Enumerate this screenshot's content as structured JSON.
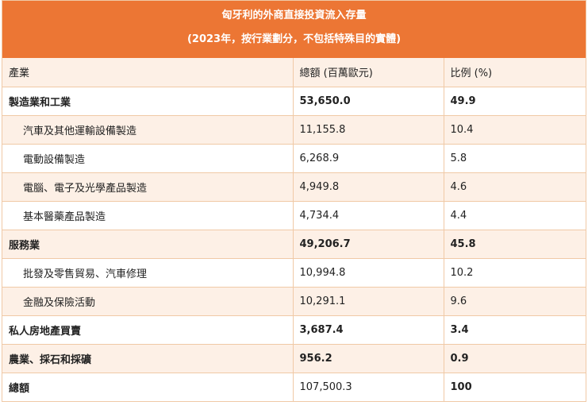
{
  "table": {
    "title": "匈牙利的外商直接投資流入存量",
    "subtitle": "(2023年，按行業劃分，不包括特殊目的實體)",
    "columns": [
      "產業",
      "總額 (百萬歐元)",
      "比例 (%)"
    ],
    "rows": [
      {
        "industry": "製造業和工業",
        "amount": "53,650.0",
        "percent": "49.9"
      },
      {
        "industry": "汽車及其他運輸設備製造",
        "amount": "11,155.8",
        "percent": "10.4"
      },
      {
        "industry": "電動設備製造",
        "amount": "6,268.9",
        "percent": "5.8"
      },
      {
        "industry": "電腦、電子及光學產品製造",
        "amount": "4,949.8",
        "percent": "4.6"
      },
      {
        "industry": "基本醫藥產品製造",
        "amount": "4,734.4",
        "percent": "4.4"
      },
      {
        "industry": "服務業",
        "amount": "49,206.7",
        "percent": "45.8"
      },
      {
        "industry": "批發及零售貿易、汽車修理",
        "amount": "10,994.8",
        "percent": "10.2"
      },
      {
        "industry": "金融及保險活動",
        "amount": "10,291.1",
        "percent": "9.6"
      },
      {
        "industry": "私人房地產買賣",
        "amount": "3,687.4",
        "percent": "3.4"
      },
      {
        "industry": "農業、採石和採礦",
        "amount": "956.2",
        "percent": "0.9"
      },
      {
        "industry": "總額",
        "amount": "107,500.3",
        "percent": "100"
      }
    ]
  }
}
